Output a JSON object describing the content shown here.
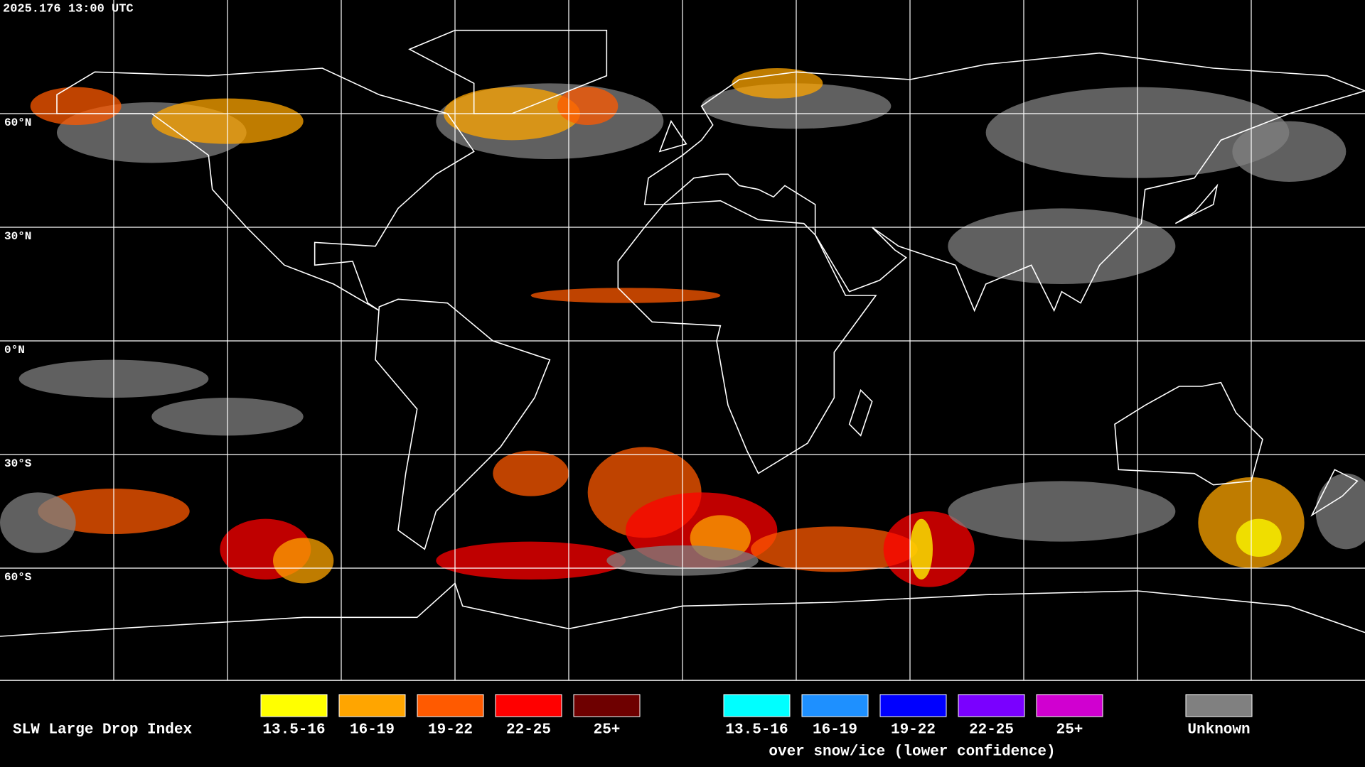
{
  "header": {
    "timestamp": "2025.176 13:00 UTC"
  },
  "latitude_labels": [
    "60°N",
    "30°N",
    "0°N",
    "30°S",
    "60°S"
  ],
  "legend": {
    "title": "SLW Large Drop Index",
    "groups": [
      {
        "items": [
          {
            "label": "13.5-16",
            "color": "#ffff00"
          },
          {
            "label": "16-19",
            "color": "#ffa500"
          },
          {
            "label": "19-22",
            "color": "#ff5a00"
          },
          {
            "label": "22-25",
            "color": "#ff0000"
          },
          {
            "label": "25+",
            "color": "#6e0000"
          }
        ]
      },
      {
        "items": [
          {
            "label": "13.5-16",
            "color": "#00ffff"
          },
          {
            "label": "16-19",
            "color": "#1e90ff"
          },
          {
            "label": "19-22",
            "color": "#0000ff"
          },
          {
            "label": "22-25",
            "color": "#7a00ff"
          },
          {
            "label": "25+",
            "color": "#d000d0"
          }
        ],
        "note": "over snow/ice (lower confidence)"
      },
      {
        "items": [
          {
            "label": "Unknown",
            "color": "#808080"
          }
        ]
      }
    ]
  }
}
